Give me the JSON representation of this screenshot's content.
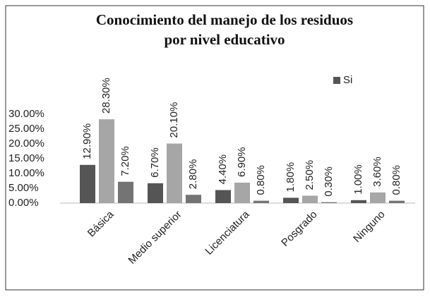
{
  "chart_data": {
    "type": "bar",
    "title": [
      "Conocimiento del manejo de los residuos",
      "por nivel educativo"
    ],
    "categories": [
      "Básica",
      "Medio superior",
      "Licenciatura",
      "Posgrado",
      "Ninguno"
    ],
    "series": [
      {
        "name": "Si",
        "color": "#555555",
        "values": [
          12.9,
          6.7,
          4.4,
          1.8,
          1.0
        ],
        "value_labels": [
          "12.90%",
          "6.70%",
          "4.40%",
          "1.80%",
          "1.00%"
        ]
      },
      {
        "color": "#a6a6a6",
        "values": [
          28.3,
          20.1,
          6.9,
          2.5,
          3.6
        ],
        "value_labels": [
          "28.30%",
          "20.10%",
          "6.90%",
          "2.50%",
          "3.60%"
        ]
      },
      {
        "color": "#747474",
        "values": [
          7.2,
          2.8,
          0.8,
          0.3,
          0.8
        ],
        "value_labels": [
          "7.20%",
          "2.80%",
          "0.80%",
          "0.30%",
          "0.80%"
        ]
      }
    ],
    "ylim": [
      0,
      30
    ],
    "yticks": [
      {
        "value": 0,
        "label": "0.00%"
      },
      {
        "value": 5,
        "label": "5.00%"
      },
      {
        "value": 10,
        "label": "10.00%"
      },
      {
        "value": 15,
        "label": "15.00%"
      },
      {
        "value": 20,
        "label": "20.00%"
      },
      {
        "value": 25,
        "label": "25.00%"
      },
      {
        "value": 30,
        "label": "30.00%"
      }
    ],
    "grid": false,
    "legend": "top-right"
  }
}
